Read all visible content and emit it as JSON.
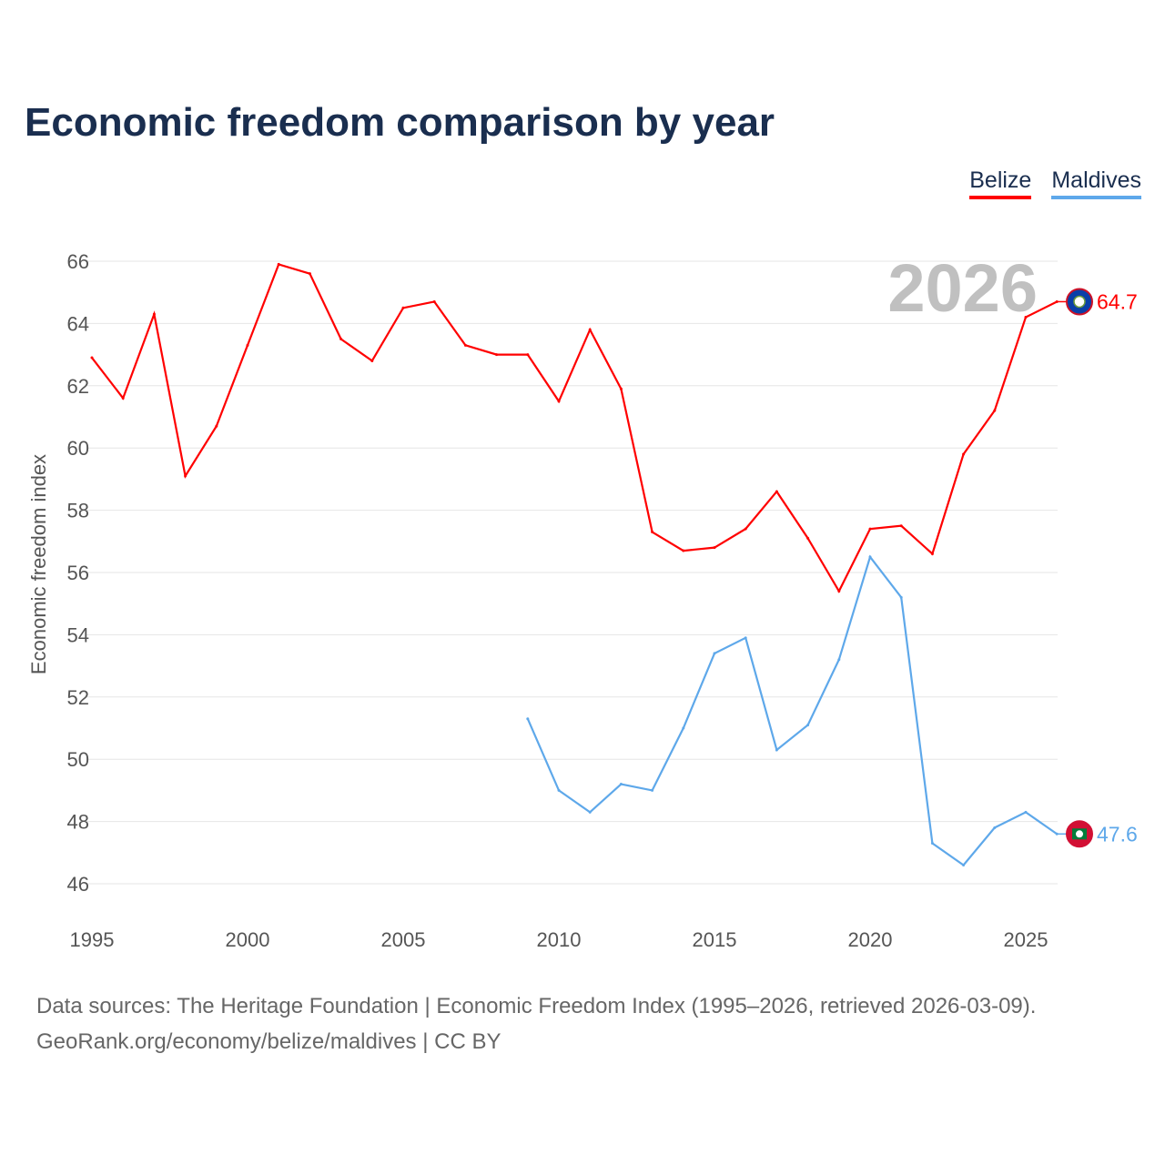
{
  "chart_data": {
    "type": "line",
    "title": "Economic freedom comparison by year",
    "ylabel": "Economic freedom index",
    "xlabel": "",
    "ylim": [
      45,
      67
    ],
    "xlim": [
      1995,
      2026
    ],
    "yticks": [
      46,
      48,
      50,
      52,
      54,
      56,
      58,
      60,
      62,
      64,
      66
    ],
    "xticks": [
      1995,
      2000,
      2005,
      2010,
      2015,
      2020,
      2025
    ],
    "year_label": "2026",
    "grid": true,
    "legend_position": "top-right",
    "series": [
      {
        "name": "Belize",
        "color": "#ff0000",
        "end_label": "64.7",
        "x": [
          1995,
          1996,
          1997,
          1998,
          1999,
          2000,
          2001,
          2002,
          2003,
          2004,
          2005,
          2006,
          2007,
          2008,
          2009,
          2010,
          2011,
          2012,
          2013,
          2014,
          2015,
          2016,
          2017,
          2018,
          2019,
          2020,
          2021,
          2022,
          2023,
          2024,
          2025,
          2026
        ],
        "values": [
          62.9,
          61.6,
          64.3,
          59.1,
          60.7,
          63.3,
          65.9,
          65.6,
          63.5,
          62.8,
          64.5,
          64.7,
          63.3,
          63.0,
          63.0,
          61.5,
          63.8,
          61.9,
          57.3,
          56.7,
          56.8,
          57.4,
          58.6,
          57.1,
          55.4,
          57.4,
          57.5,
          56.6,
          59.8,
          61.2,
          64.2,
          64.7
        ]
      },
      {
        "name": "Maldives",
        "color": "#5ea8ea",
        "end_label": "47.6",
        "x": [
          2009,
          2010,
          2011,
          2012,
          2013,
          2014,
          2015,
          2016,
          2017,
          2018,
          2019,
          2020,
          2021,
          2022,
          2023,
          2024,
          2025,
          2026
        ],
        "values": [
          51.3,
          49.0,
          48.3,
          49.2,
          49.0,
          51.0,
          53.4,
          53.9,
          50.3,
          51.1,
          53.2,
          56.5,
          55.2,
          47.3,
          46.6,
          47.8,
          48.3,
          47.6
        ]
      }
    ]
  },
  "footer": {
    "line1": "Data sources: The Heritage Foundation | Economic Freedom Index (1995–2026, retrieved 2026-03-09).",
    "line2": "GeoRank.org/economy/belize/maldives | CC BY"
  }
}
